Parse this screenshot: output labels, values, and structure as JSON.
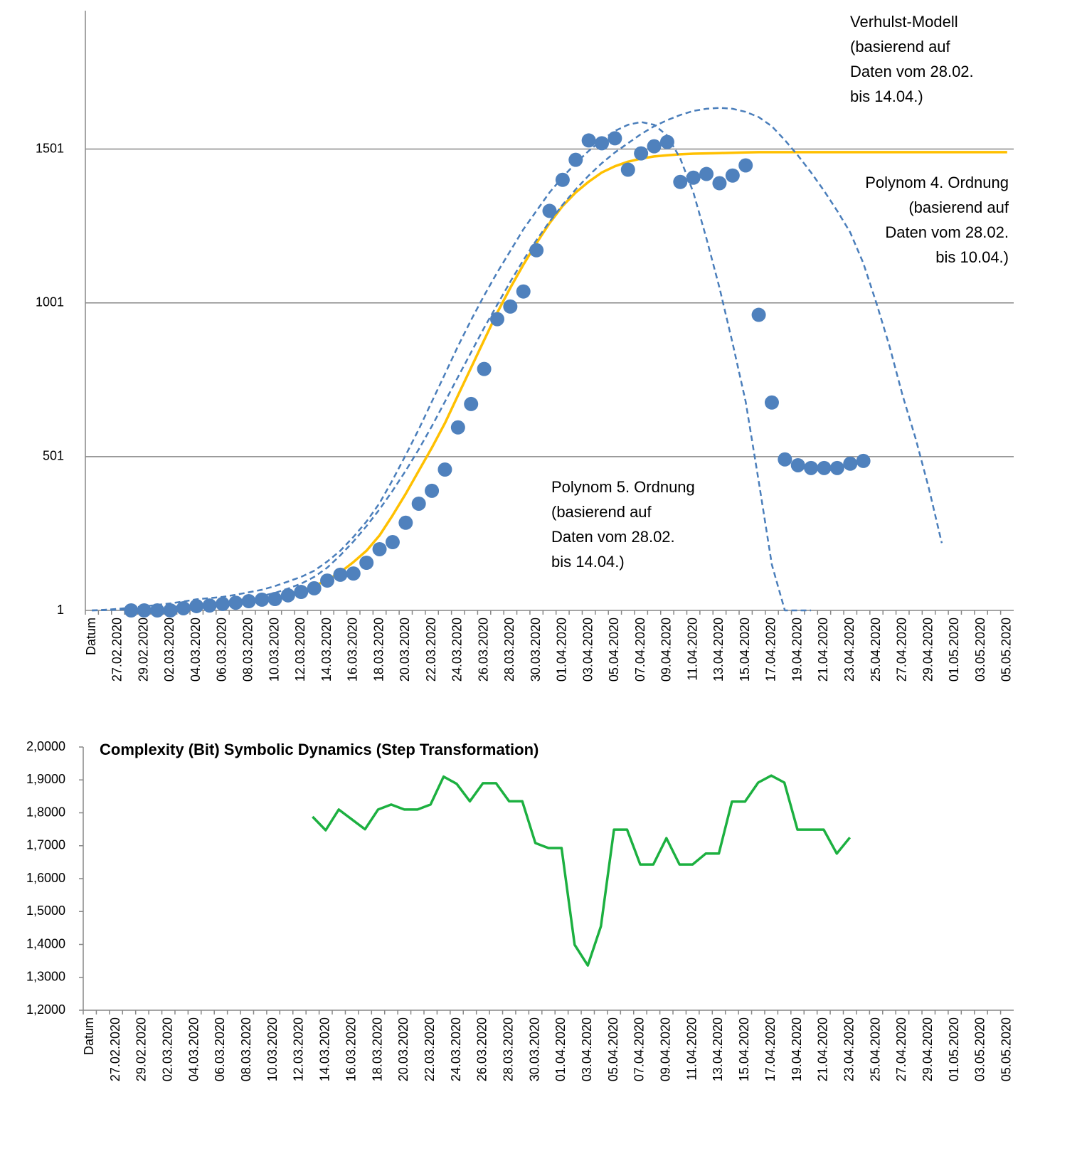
{
  "chart_data": [
    {
      "type": "line",
      "categories": [
        "Datum",
        null,
        "27.02.2020",
        null,
        "29.02.2020",
        null,
        "02.03.2020",
        null,
        "04.03.2020",
        null,
        "06.03.2020",
        null,
        "08.03.2020",
        null,
        "10.03.2020",
        null,
        "12.03.2020",
        null,
        "14.03.2020",
        null,
        "16.03.2020",
        null,
        "18.03.2020",
        null,
        "20.03.2020",
        null,
        "22.03.2020",
        null,
        "24.03.2020",
        null,
        "26.03.2020",
        null,
        "28.03.2020",
        null,
        "30.03.2020",
        null,
        "01.04.2020",
        null,
        "03.04.2020",
        null,
        "05.04.2020",
        null,
        "07.04.2020",
        null,
        "09.04.2020",
        null,
        "11.04.2020",
        null,
        "13.04.2020",
        null,
        "15.04.2020",
        null,
        "17.04.2020",
        null,
        "19.04.2020",
        null,
        "21.04.2020",
        null,
        "23.04.2020",
        null,
        "25.04.2020",
        null,
        "27.04.2020",
        null,
        "29.04.2020",
        null,
        "01.05.2020",
        null,
        "03.05.2020",
        null,
        "05.05.2020"
      ],
      "ylim": [
        1,
        1951
      ],
      "yticks": [
        1,
        501,
        1001,
        1501
      ],
      "grid": true,
      "series": [
        {
          "color": "#ffc000",
          "style": "solid",
          "values": [
            null,
            null,
            null,
            1,
            2,
            3,
            5,
            7,
            10,
            14,
            18,
            23,
            28,
            34,
            42,
            52,
            64,
            80,
            100,
            125,
            158,
            195,
            245,
            310,
            380,
            455,
            530,
            610,
            700,
            790,
            880,
            969,
            1050,
            1125,
            1195,
            1260,
            1316,
            1360,
            1395,
            1425,
            1445,
            1460,
            1470,
            1477,
            1481,
            1484,
            1486,
            1487,
            1488,
            1489,
            1490,
            1491,
            1491,
            1491,
            1491,
            1491,
            1491,
            1491,
            1491,
            1491,
            1491,
            1491,
            1491,
            1491,
            1491,
            1491,
            1491,
            1491,
            1491,
            1491,
            1491
          ]
        },
        {
          "color": "#4a7ebb",
          "style": "dashed",
          "values": [
            1,
            3,
            6,
            10,
            14,
            19,
            24,
            30,
            37,
            41,
            45,
            52,
            60,
            68,
            80,
            95,
            110,
            130,
            160,
            195,
            240,
            290,
            350,
            425,
            506,
            590,
            680,
            770,
            860,
            945,
            1025,
            1100,
            1170,
            1240,
            1300,
            1360,
            1410,
            1455,
            1495,
            1530,
            1560,
            1580,
            1589,
            1580,
            1545,
            1470,
            1360,
            1210,
            1050,
            870,
            680,
            420,
            150,
            1,
            1,
            1,
            null,
            null,
            null,
            null,
            null,
            null,
            null,
            null,
            null,
            null,
            null,
            null,
            null,
            null,
            null
          ]
        },
        {
          "color": "#4a7ebb",
          "style": "dashed",
          "values": [
            1,
            2,
            3,
            5,
            7,
            9,
            12,
            15,
            19,
            23,
            28,
            33,
            40,
            48,
            58,
            72,
            88,
            110,
            140,
            180,
            225,
            275,
            330,
            390,
            455,
            525,
            600,
            680,
            760,
            840,
            920,
            995,
            1070,
            1140,
            1205,
            1265,
            1320,
            1370,
            1415,
            1455,
            1490,
            1520,
            1550,
            1575,
            1595,
            1612,
            1625,
            1632,
            1635,
            1632,
            1622,
            1605,
            1575,
            1530,
            1480,
            1425,
            1365,
            1300,
            1230,
            1130,
            1000,
            860,
            700,
            560,
            400,
            220,
            null,
            null,
            null,
            null,
            null
          ]
        },
        {
          "color": "#4f81bd",
          "style": "markers",
          "values": [
            null,
            null,
            null,
            1,
            1,
            1,
            1,
            8,
            15,
            17,
            22,
            26,
            31,
            36,
            38,
            50,
            61,
            73,
            98,
            117,
            121,
            156,
            200,
            223,
            286,
            348,
            390,
            459,
            596,
            672,
            786,
            948,
            989,
            1038,
            1172,
            1300,
            1401,
            1466,
            1529,
            1520,
            1536,
            1434,
            1487,
            1510,
            1524,
            1394,
            1408,
            1420,
            1390,
            1415,
            1448,
            962,
            677,
            492,
            473,
            464,
            464,
            464,
            478,
            487,
            null,
            null,
            null,
            null,
            null,
            null,
            null,
            null,
            null,
            null,
            null
          ]
        }
      ],
      "annotations": [
        [
          "Verhulst-Modell",
          "(basierend auf",
          "Daten vom 28.02.",
          "bis 14.04.)"
        ],
        [
          "Polynom 4. Ordnung",
          "(basierend auf",
          "Daten vom 28.02.",
          "bis 10.04.)"
        ],
        [
          "Polynom 5. Ordnung",
          "(basierend auf",
          "Daten vom 28.02.",
          "bis 14.04.)"
        ]
      ]
    },
    {
      "type": "line",
      "title": "Complexity (Bit) Symbolic Dynamics (Step Transformation)",
      "categories": [
        "Datum",
        null,
        "27.02.2020",
        null,
        "29.02.2020",
        null,
        "02.03.2020",
        null,
        "04.03.2020",
        null,
        "06.03.2020",
        null,
        "08.03.2020",
        null,
        "10.03.2020",
        null,
        "12.03.2020",
        null,
        "14.03.2020",
        null,
        "16.03.2020",
        null,
        "18.03.2020",
        null,
        "20.03.2020",
        null,
        "22.03.2020",
        null,
        "24.03.2020",
        null,
        "26.03.2020",
        null,
        "28.03.2020",
        null,
        "30.03.2020",
        null,
        "01.04.2020",
        null,
        "03.04.2020",
        null,
        "05.04.2020",
        null,
        "07.04.2020",
        null,
        "09.04.2020",
        null,
        "11.04.2020",
        null,
        "13.04.2020",
        null,
        "15.04.2020",
        null,
        "17.04.2020",
        null,
        "19.04.2020",
        null,
        "21.04.2020",
        null,
        "23.04.2020",
        null,
        "25.04.2020",
        null,
        "27.04.2020",
        null,
        "29.04.2020",
        null,
        "01.05.2020",
        null,
        "03.05.2020",
        null,
        "05.05.2020"
      ],
      "ylim": [
        1.2,
        2.0
      ],
      "yticks": [
        {
          "value": 1.2,
          "label": "1,2000"
        },
        {
          "value": 1.3,
          "label": "1,3000"
        },
        {
          "value": 1.4,
          "label": "1,4000"
        },
        {
          "value": 1.5,
          "label": "1,5000"
        },
        {
          "value": 1.6,
          "label": "1,6000"
        },
        {
          "value": 1.7,
          "label": "1,7000"
        },
        {
          "value": 1.8,
          "label": "1,8000"
        },
        {
          "value": 1.9,
          "label": "1,9000"
        },
        {
          "value": 2.0,
          "label": "2,0000"
        }
      ],
      "grid": false,
      "series": [
        {
          "color": "#1cb040",
          "style": "solid",
          "values": [
            null,
            null,
            null,
            null,
            null,
            null,
            null,
            null,
            null,
            null,
            null,
            null,
            null,
            null,
            null,
            null,
            null,
            1.788,
            1.747,
            1.81,
            1.78,
            1.75,
            1.81,
            1.825,
            1.81,
            1.81,
            1.825,
            1.91,
            1.888,
            1.835,
            1.89,
            1.89,
            1.835,
            1.835,
            1.708,
            1.693,
            1.693,
            1.399,
            1.336,
            1.455,
            1.749,
            1.749,
            1.643,
            1.643,
            1.723,
            1.643,
            1.643,
            1.676,
            1.676,
            1.834,
            1.834,
            1.892,
            1.913,
            1.892,
            1.749,
            1.749,
            1.749,
            1.676,
            1.725,
            null,
            null,
            null,
            null,
            null,
            null,
            null,
            null,
            null,
            null,
            null,
            null
          ]
        }
      ]
    }
  ]
}
